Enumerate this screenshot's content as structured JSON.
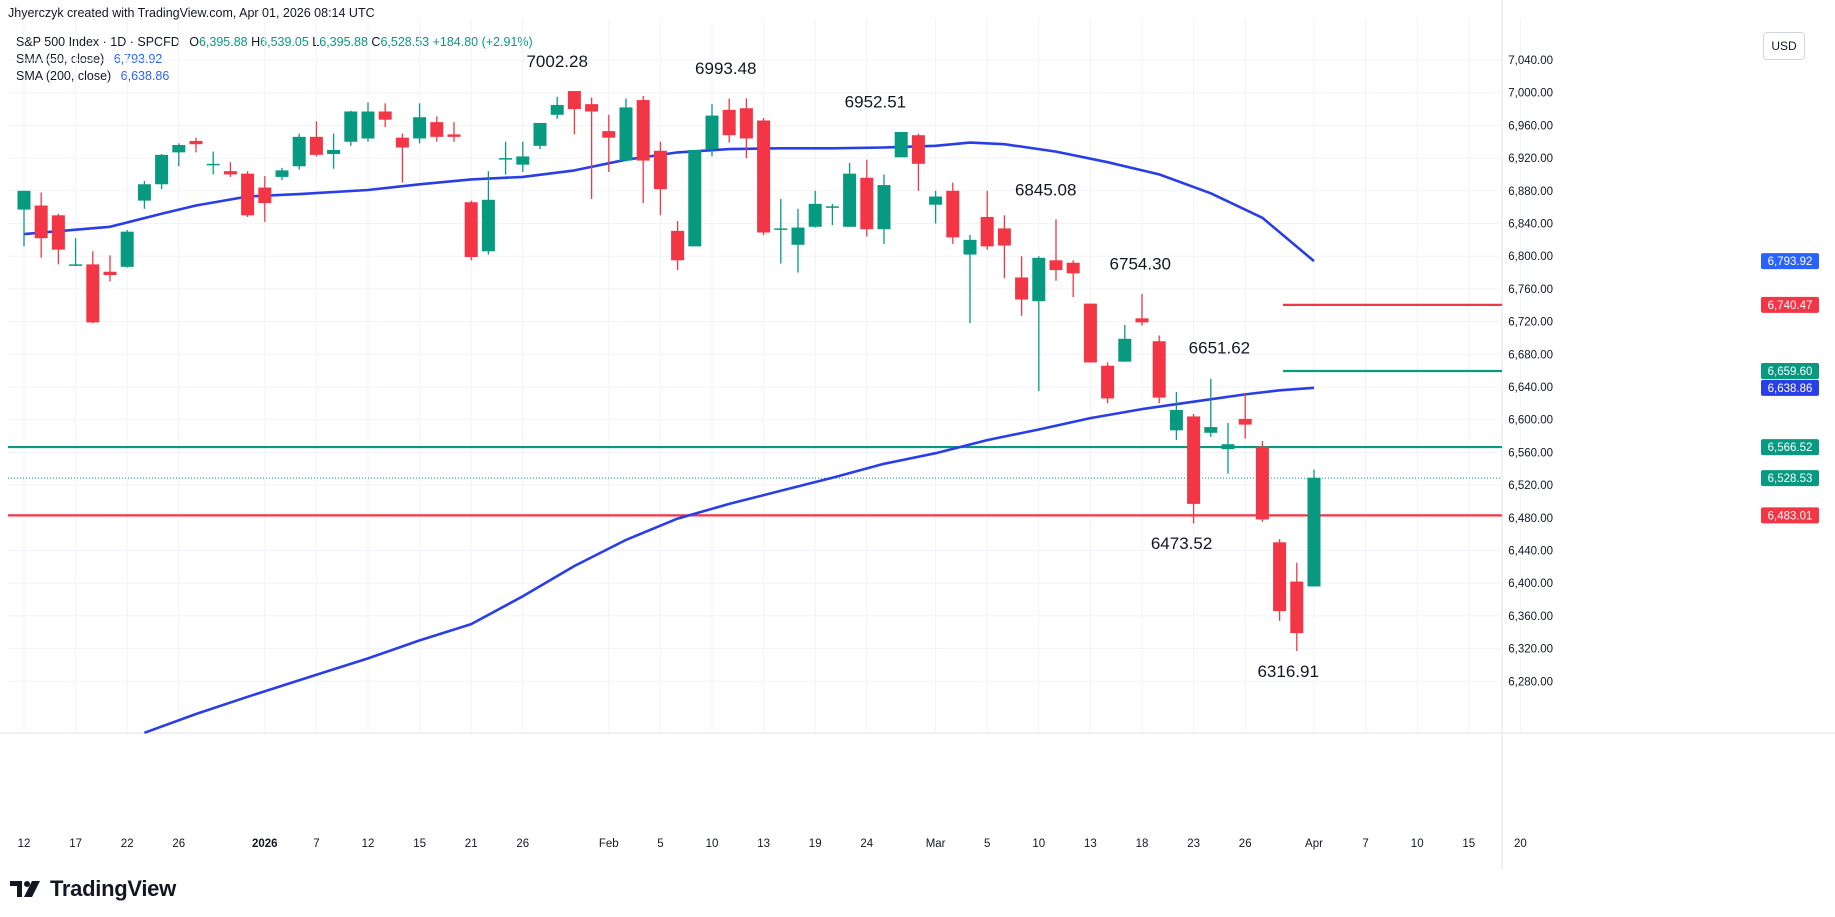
{
  "header": {
    "caption": "Jhyerczyk created with TradingView.com, Apr 01, 2026 08:14 UTC"
  },
  "legend": {
    "symbol": "S&P 500 Index · 1D · SPCFD",
    "ohlc": {
      "o_label": "O",
      "o": "6,395.88",
      "h_label": "H",
      "h": "6,539.05",
      "l_label": "L",
      "l": "6,395.88",
      "c_label": "C",
      "c": "6,528.53",
      "change": "+184.80 (+2.91%)"
    },
    "sma50": {
      "label": "SMA (50, close)",
      "value": "6,793.92"
    },
    "sma200": {
      "label": "SMA (200, close)",
      "value": "6,638.86"
    }
  },
  "currency": "USD",
  "brand": "TradingView",
  "colors": {
    "up": "#089981",
    "down": "#f23645",
    "sma": "#2a3ee8",
    "grid": "#f0f3fa",
    "text": "#131722"
  },
  "chart_data": {
    "type": "candlestick",
    "title": "S&P 500 Index · 1D · SPCFD",
    "ylim": [
      6240,
      7080
    ],
    "y_ticks": [
      6280,
      6320,
      6360,
      6400,
      6440,
      6480,
      6520,
      6560,
      6600,
      6640,
      6680,
      6720,
      6760,
      6800,
      6840,
      6880,
      6920,
      6960,
      7000,
      7040
    ],
    "x_ticks": [
      {
        "i": 0,
        "label": "12"
      },
      {
        "i": 3,
        "label": "17"
      },
      {
        "i": 6,
        "label": "22"
      },
      {
        "i": 9,
        "label": "26"
      },
      {
        "i": 14,
        "label": "2026"
      },
      {
        "i": 17,
        "label": "7"
      },
      {
        "i": 20,
        "label": "12"
      },
      {
        "i": 23,
        "label": "15"
      },
      {
        "i": 26,
        "label": "21"
      },
      {
        "i": 29,
        "label": "26"
      },
      {
        "i": 34,
        "label": "Feb"
      },
      {
        "i": 37,
        "label": "5"
      },
      {
        "i": 40,
        "label": "10"
      },
      {
        "i": 43,
        "label": "13"
      },
      {
        "i": 46,
        "label": "19"
      },
      {
        "i": 49,
        "label": "24"
      },
      {
        "i": 53,
        "label": "Mar"
      },
      {
        "i": 56,
        "label": "5"
      },
      {
        "i": 59,
        "label": "10"
      },
      {
        "i": 62,
        "label": "13"
      },
      {
        "i": 65,
        "label": "18"
      },
      {
        "i": 68,
        "label": "23"
      },
      {
        "i": 71,
        "label": "26"
      },
      {
        "i": 75,
        "label": "Apr"
      },
      {
        "i": 78,
        "label": "7"
      },
      {
        "i": 81,
        "label": "10"
      },
      {
        "i": 84,
        "label": "15"
      },
      {
        "i": 87,
        "label": "20"
      }
    ],
    "candles": [
      {
        "o": 6857,
        "h": 6880,
        "l": 6812,
        "c": 6880
      },
      {
        "o": 6862,
        "h": 6878,
        "l": 6798,
        "c": 6822
      },
      {
        "o": 6850,
        "h": 6852,
        "l": 6790,
        "c": 6808
      },
      {
        "o": 6789,
        "h": 6822,
        "l": 6788,
        "c": 6790
      },
      {
        "o": 6790,
        "h": 6806,
        "l": 6718,
        "c": 6719
      },
      {
        "o": 6781,
        "h": 6801,
        "l": 6769,
        "c": 6777
      },
      {
        "o": 6787,
        "h": 6832,
        "l": 6786,
        "c": 6830
      },
      {
        "o": 6868,
        "h": 6892,
        "l": 6858,
        "c": 6888
      },
      {
        "o": 6888,
        "h": 6925,
        "l": 6882,
        "c": 6924
      },
      {
        "o": 6927,
        "h": 6938,
        "l": 6910,
        "c": 6936
      },
      {
        "o": 6941,
        "h": 6945,
        "l": 6927,
        "c": 6937
      },
      {
        "o": 6913,
        "h": 6928,
        "l": 6900,
        "c": 6913
      },
      {
        "o": 6904,
        "h": 6915,
        "l": 6897,
        "c": 6900
      },
      {
        "o": 6901,
        "h": 6904,
        "l": 6848,
        "c": 6850
      },
      {
        "o": 6884,
        "h": 6898,
        "l": 6842,
        "c": 6865
      },
      {
        "o": 6897,
        "h": 6908,
        "l": 6893,
        "c": 6905
      },
      {
        "o": 6910,
        "h": 6950,
        "l": 6906,
        "c": 6946
      },
      {
        "o": 6946,
        "h": 6965,
        "l": 6922,
        "c": 6924
      },
      {
        "o": 6925,
        "h": 6950,
        "l": 6907,
        "c": 6930
      },
      {
        "o": 6940,
        "h": 6978,
        "l": 6935,
        "c": 6977
      },
      {
        "o": 6944,
        "h": 6988,
        "l": 6940,
        "c": 6977
      },
      {
        "o": 6977,
        "h": 6987,
        "l": 6958,
        "c": 6967
      },
      {
        "o": 6945,
        "h": 6950,
        "l": 6890,
        "c": 6933
      },
      {
        "o": 6944,
        "h": 6987,
        "l": 6938,
        "c": 6970
      },
      {
        "o": 6964,
        "h": 6971,
        "l": 6940,
        "c": 6946
      },
      {
        "o": 6949,
        "h": 6964,
        "l": 6940,
        "c": 6946
      },
      {
        "o": 6866,
        "h": 6868,
        "l": 6795,
        "c": 6799
      },
      {
        "o": 6806,
        "h": 6904,
        "l": 6802,
        "c": 6869
      },
      {
        "o": 6920,
        "h": 6940,
        "l": 6900,
        "c": 6920
      },
      {
        "o": 6912,
        "h": 6940,
        "l": 6903,
        "c": 6922
      },
      {
        "o": 6935,
        "h": 6962,
        "l": 6931,
        "c": 6963
      },
      {
        "o": 6973,
        "h": 6995,
        "l": 6968,
        "c": 6985
      },
      {
        "o": 7002,
        "h": 7002,
        "l": 6949,
        "c": 6980
      },
      {
        "o": 6986,
        "h": 6994,
        "l": 6870,
        "c": 6977
      },
      {
        "o": 6953,
        "h": 6973,
        "l": 6903,
        "c": 6945
      },
      {
        "o": 6917,
        "h": 6993,
        "l": 6916,
        "c": 6982
      },
      {
        "o": 6991,
        "h": 6996,
        "l": 6865,
        "c": 6917
      },
      {
        "o": 6929,
        "h": 6940,
        "l": 6850,
        "c": 6882
      },
      {
        "o": 6831,
        "h": 6843,
        "l": 6783,
        "c": 6795
      },
      {
        "o": 6812,
        "h": 6930,
        "l": 6812,
        "c": 6930
      },
      {
        "o": 6931,
        "h": 6986,
        "l": 6922,
        "c": 6972
      },
      {
        "o": 6979,
        "h": 6993,
        "l": 6939,
        "c": 6948
      },
      {
        "o": 6981,
        "h": 6993,
        "l": 6920,
        "c": 6944
      },
      {
        "o": 6966,
        "h": 6969,
        "l": 6826,
        "c": 6829
      },
      {
        "o": 6833,
        "h": 6870,
        "l": 6791,
        "c": 6834
      },
      {
        "o": 6814,
        "h": 6858,
        "l": 6780,
        "c": 6835
      },
      {
        "o": 6836,
        "h": 6880,
        "l": 6835,
        "c": 6864
      },
      {
        "o": 6861,
        "h": 6864,
        "l": 6838,
        "c": 6861
      },
      {
        "o": 6836,
        "h": 6914,
        "l": 6836,
        "c": 6901
      },
      {
        "o": 6896,
        "h": 6918,
        "l": 6824,
        "c": 6833
      },
      {
        "o": 6833,
        "h": 6900,
        "l": 6815,
        "c": 6887
      },
      {
        "o": 6921,
        "h": 6952,
        "l": 6921,
        "c": 6952
      },
      {
        "o": 6948,
        "h": 6950,
        "l": 6880,
        "c": 6913
      },
      {
        "o": 6863,
        "h": 6880,
        "l": 6840,
        "c": 6873
      },
      {
        "o": 6880,
        "h": 6890,
        "l": 6815,
        "c": 6823
      },
      {
        "o": 6802,
        "h": 6826,
        "l": 6718,
        "c": 6820
      },
      {
        "o": 6848,
        "h": 6880,
        "l": 6808,
        "c": 6812
      },
      {
        "o": 6834,
        "h": 6850,
        "l": 6773,
        "c": 6813
      },
      {
        "o": 6774,
        "h": 6800,
        "l": 6727,
        "c": 6747
      },
      {
        "o": 6745,
        "h": 6800,
        "l": 6635,
        "c": 6798
      },
      {
        "o": 6795,
        "h": 6845,
        "l": 6770,
        "c": 6783
      },
      {
        "o": 6792,
        "h": 6795,
        "l": 6750,
        "c": 6779
      },
      {
        "o": 6742,
        "h": 6742,
        "l": 6670,
        "c": 6670
      },
      {
        "o": 6666,
        "h": 6670,
        "l": 6620,
        "c": 6626
      },
      {
        "o": 6671,
        "h": 6716,
        "l": 6671,
        "c": 6699
      },
      {
        "o": 6724,
        "h": 6754,
        "l": 6715,
        "c": 6719
      },
      {
        "o": 6696,
        "h": 6703,
        "l": 6620,
        "c": 6627
      },
      {
        "o": 6587,
        "h": 6634,
        "l": 6575,
        "c": 6612
      },
      {
        "o": 6604,
        "h": 6607,
        "l": 6473,
        "c": 6497
      },
      {
        "o": 6584,
        "h": 6650,
        "l": 6579,
        "c": 6591
      },
      {
        "o": 6564,
        "h": 6596,
        "l": 6534,
        "c": 6570
      },
      {
        "o": 6601,
        "h": 6632,
        "l": 6577,
        "c": 6594
      },
      {
        "o": 6567,
        "h": 6574,
        "l": 6475,
        "c": 6478
      },
      {
        "o": 6450,
        "h": 6454,
        "l": 6354,
        "c": 6366
      },
      {
        "o": 6402,
        "h": 6425,
        "l": 6317,
        "c": 6339
      },
      {
        "o": 6396,
        "h": 6539,
        "l": 6396,
        "c": 6529
      }
    ],
    "sma50": [
      [
        0,
        6827
      ],
      [
        5,
        6836
      ],
      [
        8,
        6852
      ],
      [
        10,
        6862
      ],
      [
        13,
        6873
      ],
      [
        16,
        6876
      ],
      [
        20,
        6881
      ],
      [
        23,
        6888
      ],
      [
        26,
        6894
      ],
      [
        29,
        6897
      ],
      [
        32,
        6905
      ],
      [
        35,
        6918
      ],
      [
        38,
        6927
      ],
      [
        41,
        6931
      ],
      [
        44,
        6932
      ],
      [
        47,
        6932
      ],
      [
        50,
        6933
      ],
      [
        53,
        6935
      ],
      [
        55,
        6939
      ],
      [
        57,
        6937
      ],
      [
        60,
        6928
      ],
      [
        63,
        6915
      ],
      [
        66,
        6900
      ],
      [
        69,
        6877
      ],
      [
        72,
        6847
      ],
      [
        75,
        6794
      ]
    ],
    "sma200": [
      [
        7,
        6217
      ],
      [
        10,
        6240
      ],
      [
        13,
        6261
      ],
      [
        17,
        6288
      ],
      [
        20,
        6308
      ],
      [
        23,
        6330
      ],
      [
        26,
        6350
      ],
      [
        29,
        6384
      ],
      [
        32,
        6421
      ],
      [
        35,
        6453
      ],
      [
        38,
        6479
      ],
      [
        41,
        6497
      ],
      [
        44,
        6513
      ],
      [
        47,
        6529
      ],
      [
        50,
        6546
      ],
      [
        53,
        6559
      ],
      [
        56,
        6575
      ],
      [
        59,
        6588
      ],
      [
        62,
        6602
      ],
      [
        65,
        6613
      ],
      [
        68,
        6622
      ],
      [
        71,
        6631
      ],
      [
        73,
        6636
      ],
      [
        75,
        6639
      ]
    ],
    "horizontal_lines": [
      {
        "price": 6566.52,
        "color": "#089981",
        "x_start_i": -1
      },
      {
        "price": 6483.01,
        "color": "#f23645",
        "x_start_i": -1
      },
      {
        "price": 6740.47,
        "color": "#f23645",
        "x_start_i": 73.2
      },
      {
        "price": 6659.6,
        "color": "#089981",
        "x_start_i": 73.2
      }
    ],
    "last_price_line": {
      "price": 6528.53,
      "color": "#089981"
    },
    "price_tags": [
      {
        "label": "6,793.92",
        "price": 6793.92,
        "color": "#2962ff"
      },
      {
        "label": "6,740.47",
        "price": 6740.47,
        "color": "#f23645"
      },
      {
        "label": "6,659.60",
        "price": 6659.6,
        "color": "#089981"
      },
      {
        "label": "6,638.86",
        "price": 6638.86,
        "color": "#2a3ee8"
      },
      {
        "label": "6,566.52",
        "price": 6566.52,
        "color": "#089981"
      },
      {
        "label": "6,528.53",
        "price": 6528.53,
        "color": "#089981"
      },
      {
        "label": "6,483.01",
        "price": 6483.01,
        "color": "#f23645"
      }
    ],
    "annotations": [
      {
        "text": "7002.28",
        "i": 31,
        "price": 7002.28
      },
      {
        "text": "6993.48",
        "i": 40.8,
        "price": 6993.48
      },
      {
        "text": "6952.51",
        "i": 49.5,
        "price": 6952.51
      },
      {
        "text": "6845.08",
        "i": 59.4,
        "price": 6845.08
      },
      {
        "text": "6754.30",
        "i": 64.9,
        "price": 6754.3
      },
      {
        "text": "6651.62",
        "i": 69.5,
        "price": 6651.62
      },
      {
        "text": "6473.52",
        "i": 67.3,
        "price": 6473.52
      },
      {
        "text": "6316.91",
        "i": 73.5,
        "price": 6316.91
      }
    ]
  }
}
